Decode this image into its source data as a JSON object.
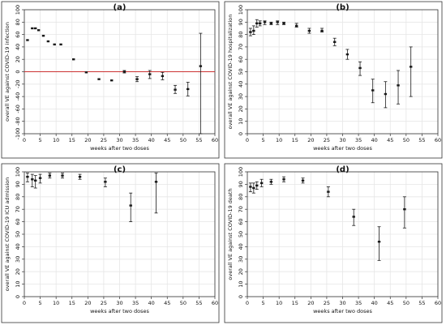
{
  "chart_data": [
    {
      "type": "scatter",
      "title": "(a)",
      "xlabel": "weeks after two doses",
      "ylabel": "overall VE against COVID-19 infection",
      "xlim": [
        0,
        60
      ],
      "ylim": [
        -100,
        100
      ],
      "xticks": [
        0,
        5,
        10,
        15,
        20,
        25,
        30,
        35,
        40,
        45,
        50,
        55,
        60
      ],
      "yticks": [
        -100,
        -80,
        -60,
        -40,
        -20,
        0,
        20,
        40,
        60,
        80,
        100
      ],
      "reference_line": 0,
      "reference_color": "#cc3333",
      "grid": true,
      "points": [
        {
          "x": 1,
          "y": 51,
          "lo": 50,
          "hi": 52
        },
        {
          "x": 2.5,
          "y": 70,
          "lo": 69,
          "hi": 71
        },
        {
          "x": 3.5,
          "y": 70,
          "lo": 69,
          "hi": 71
        },
        {
          "x": 4.5,
          "y": 67,
          "lo": 66,
          "hi": 68
        },
        {
          "x": 6,
          "y": 58,
          "lo": 57,
          "hi": 59
        },
        {
          "x": 7.5,
          "y": 49,
          "lo": 48,
          "hi": 50
        },
        {
          "x": 9.5,
          "y": 44,
          "lo": 43,
          "hi": 45
        },
        {
          "x": 11.5,
          "y": 44,
          "lo": 43,
          "hi": 45
        },
        {
          "x": 15.5,
          "y": 20,
          "lo": 19,
          "hi": 21
        },
        {
          "x": 19.5,
          "y": -1,
          "lo": -2,
          "hi": 0
        },
        {
          "x": 23.5,
          "y": -12,
          "lo": -13,
          "hi": -11
        },
        {
          "x": 27.5,
          "y": -14,
          "lo": -15,
          "hi": -13
        },
        {
          "x": 31.5,
          "y": 0,
          "lo": -2,
          "hi": 2
        },
        {
          "x": 35.5,
          "y": -12,
          "lo": -16,
          "hi": -8
        },
        {
          "x": 39.5,
          "y": -4,
          "lo": -11,
          "hi": 2
        },
        {
          "x": 43.5,
          "y": -7,
          "lo": -13,
          "hi": -1
        },
        {
          "x": 47.5,
          "y": -29,
          "lo": -35,
          "hi": -22
        },
        {
          "x": 51.5,
          "y": -28,
          "lo": -39,
          "hi": -17
        },
        {
          "x": 55.5,
          "y": 9,
          "lo": -100,
          "hi": 62
        }
      ]
    },
    {
      "type": "scatter",
      "title": "(b)",
      "xlabel": "weeks after two doses",
      "ylabel": "overall VE against COVID-19 hospitalization",
      "xlim": [
        0,
        60
      ],
      "ylim": [
        0,
        100
      ],
      "xticks": [
        0,
        5,
        10,
        15,
        20,
        25,
        30,
        35,
        40,
        45,
        50,
        55,
        60
      ],
      "yticks": [
        0,
        10,
        20,
        30,
        40,
        50,
        60,
        70,
        80,
        90,
        100
      ],
      "grid": true,
      "points": [
        {
          "x": 1,
          "y": 82,
          "lo": 79,
          "hi": 85
        },
        {
          "x": 2,
          "y": 83,
          "lo": 80,
          "hi": 87
        },
        {
          "x": 3,
          "y": 89,
          "lo": 86,
          "hi": 92
        },
        {
          "x": 4,
          "y": 89,
          "lo": 87,
          "hi": 91
        },
        {
          "x": 5.5,
          "y": 90,
          "lo": 88,
          "hi": 91
        },
        {
          "x": 7.5,
          "y": 89,
          "lo": 88,
          "hi": 90
        },
        {
          "x": 9.5,
          "y": 90,
          "lo": 88,
          "hi": 91
        },
        {
          "x": 11.5,
          "y": 89,
          "lo": 88,
          "hi": 90
        },
        {
          "x": 15.5,
          "y": 87,
          "lo": 86,
          "hi": 89
        },
        {
          "x": 19.5,
          "y": 83,
          "lo": 81,
          "hi": 85
        },
        {
          "x": 23.5,
          "y": 83,
          "lo": 82,
          "hi": 85
        },
        {
          "x": 27.5,
          "y": 74,
          "lo": 71,
          "hi": 77
        },
        {
          "x": 31.5,
          "y": 64,
          "lo": 60,
          "hi": 68
        },
        {
          "x": 35.5,
          "y": 53,
          "lo": 47,
          "hi": 58
        },
        {
          "x": 39.5,
          "y": 35,
          "lo": 25,
          "hi": 44
        },
        {
          "x": 43.5,
          "y": 32,
          "lo": 21,
          "hi": 42
        },
        {
          "x": 47.5,
          "y": 39,
          "lo": 24,
          "hi": 51
        },
        {
          "x": 51.5,
          "y": 54,
          "lo": 30,
          "hi": 70
        }
      ]
    },
    {
      "type": "scatter",
      "title": "(c)",
      "xlabel": "weeks after two doses",
      "ylabel": "overall VE against COVID-19 ICU admission",
      "xlim": [
        0,
        60
      ],
      "ylim": [
        0,
        100
      ],
      "xticks": [
        0,
        5,
        10,
        15,
        20,
        25,
        30,
        35,
        40,
        45,
        50,
        55,
        60
      ],
      "yticks": [
        0,
        10,
        20,
        30,
        40,
        50,
        60,
        70,
        80,
        90,
        100
      ],
      "grid": true,
      "points": [
        {
          "x": 1,
          "y": 96,
          "lo": 92,
          "hi": 99
        },
        {
          "x": 2.5,
          "y": 94,
          "lo": 88,
          "hi": 98
        },
        {
          "x": 3.5,
          "y": 93,
          "lo": 87,
          "hi": 97
        },
        {
          "x": 5,
          "y": 95,
          "lo": 91,
          "hi": 98
        },
        {
          "x": 8,
          "y": 97,
          "lo": 95,
          "hi": 99
        },
        {
          "x": 12,
          "y": 97,
          "lo": 95,
          "hi": 99
        },
        {
          "x": 17.5,
          "y": 96,
          "lo": 94,
          "hi": 98
        },
        {
          "x": 25.5,
          "y": 92,
          "lo": 88,
          "hi": 95
        },
        {
          "x": 33.5,
          "y": 73,
          "lo": 60,
          "hi": 83
        },
        {
          "x": 41.5,
          "y": 92,
          "lo": 67,
          "hi": 99
        }
      ]
    },
    {
      "type": "scatter",
      "title": "(d)",
      "xlabel": "weeks after two doses",
      "ylabel": "overall VE against COVID-19 death",
      "xlim": [
        0,
        60
      ],
      "ylim": [
        0,
        100
      ],
      "xticks": [
        0,
        5,
        10,
        15,
        20,
        25,
        30,
        35,
        40,
        45,
        50,
        55,
        60
      ],
      "yticks": [
        0,
        10,
        20,
        30,
        40,
        50,
        60,
        70,
        80,
        90,
        100
      ],
      "grid": true,
      "points": [
        {
          "x": 1,
          "y": 88,
          "lo": 84,
          "hi": 91
        },
        {
          "x": 2,
          "y": 87,
          "lo": 83,
          "hi": 91
        },
        {
          "x": 3,
          "y": 89,
          "lo": 86,
          "hi": 92
        },
        {
          "x": 4.5,
          "y": 91,
          "lo": 88,
          "hi": 94
        },
        {
          "x": 7.5,
          "y": 92,
          "lo": 90,
          "hi": 94
        },
        {
          "x": 11.5,
          "y": 94,
          "lo": 92,
          "hi": 96
        },
        {
          "x": 17.5,
          "y": 93,
          "lo": 91,
          "hi": 95
        },
        {
          "x": 25.5,
          "y": 84,
          "lo": 80,
          "hi": 88
        },
        {
          "x": 33.5,
          "y": 64,
          "lo": 57,
          "hi": 70
        },
        {
          "x": 41.5,
          "y": 44,
          "lo": 29,
          "hi": 56
        },
        {
          "x": 49.5,
          "y": 70,
          "lo": 55,
          "hi": 80
        }
      ]
    }
  ],
  "colors": {
    "frame": "#333333",
    "grid": "#e6e6e6",
    "marker": "#1a1a1a",
    "background": "#ffffff"
  }
}
